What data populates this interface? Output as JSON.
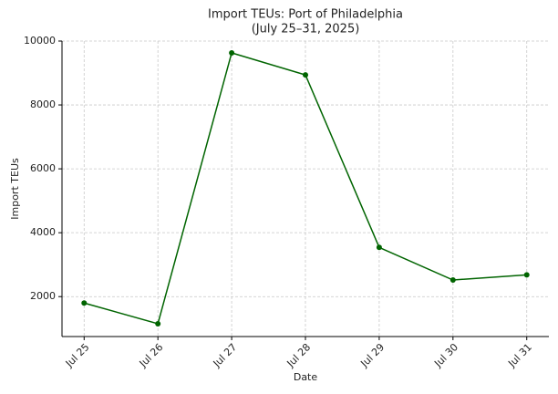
{
  "chart_data": {
    "type": "line",
    "title": "Import TEUs: Port of Philadelphia",
    "subtitle": "(July 25–31, 2025)",
    "x_label": "Date",
    "y_label": "Import TEUs",
    "categories": [
      "Jul 25",
      "Jul 26",
      "Jul 27",
      "Jul 28",
      "Jul 29",
      "Jul 30",
      "Jul 31"
    ],
    "series": [
      {
        "name": "Import TEUs",
        "color": "#006400",
        "values": [
          1800,
          1150,
          9630,
          8940,
          3540,
          2520,
          2680
        ]
      }
    ],
    "ylim": [
      750,
      10000
    ],
    "yticks": [
      2000,
      4000,
      6000,
      8000,
      10000
    ],
    "grid": true
  }
}
